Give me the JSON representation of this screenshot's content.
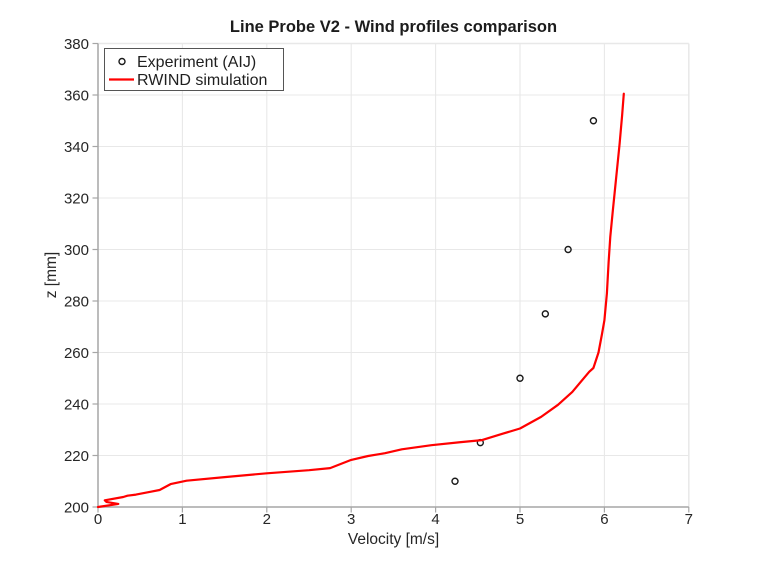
{
  "title": "Line Probe V2 - Wind profiles comparison",
  "axes": {
    "xlabel": "Velocity [m/s]",
    "ylabel": "z [mm]"
  },
  "legend": {
    "position": "top-left",
    "items": [
      {
        "label": "Experiment (AIJ)",
        "marker": "open-circle",
        "color": "#1a1a1a"
      },
      {
        "label": "RWIND simulation",
        "marker": "line",
        "color": "#ff0000"
      }
    ]
  },
  "chart_data": {
    "type": "line",
    "title": "Line Probe V2 - Wind profiles comparison",
    "xlabel": "Velocity [m/s]",
    "ylabel": "z [mm]",
    "xlim": [
      0,
      7
    ],
    "ylim": [
      200,
      380
    ],
    "xticks": [
      0,
      1,
      2,
      3,
      4,
      5,
      6,
      7
    ],
    "yticks": [
      200,
      220,
      240,
      260,
      280,
      300,
      320,
      340,
      360,
      380
    ],
    "grid": true,
    "legend_position": "top-left",
    "series": [
      {
        "name": "Experiment (AIJ)",
        "type": "scatter",
        "marker": "open-circle",
        "color": "#1a1a1a",
        "points": [
          [
            4.23,
            210
          ],
          [
            4.53,
            225
          ],
          [
            5.0,
            250
          ],
          [
            5.3,
            275
          ],
          [
            5.57,
            300
          ],
          [
            5.87,
            350
          ]
        ]
      },
      {
        "name": "RWIND simulation",
        "type": "line",
        "color": "#ff0000",
        "points": [
          [
            0.0,
            200.0
          ],
          [
            0.24,
            201.2
          ],
          [
            0.1,
            202.0
          ],
          [
            0.08,
            202.6
          ],
          [
            0.3,
            203.9
          ],
          [
            0.35,
            204.4
          ],
          [
            0.45,
            204.8
          ],
          [
            0.62,
            205.9
          ],
          [
            0.73,
            206.6
          ],
          [
            0.86,
            208.9
          ],
          [
            1.05,
            210.2
          ],
          [
            1.5,
            211.6
          ],
          [
            2.0,
            213.1
          ],
          [
            2.5,
            214.3
          ],
          [
            2.75,
            215.1
          ],
          [
            3.0,
            218.3
          ],
          [
            3.2,
            219.8
          ],
          [
            3.4,
            220.9
          ],
          [
            3.6,
            222.4
          ],
          [
            3.95,
            224.0
          ],
          [
            4.3,
            225.2
          ],
          [
            4.55,
            226.0
          ],
          [
            4.8,
            228.5
          ],
          [
            5.0,
            230.5
          ],
          [
            5.25,
            235.0
          ],
          [
            5.45,
            239.7
          ],
          [
            5.62,
            244.7
          ],
          [
            5.82,
            252.5
          ],
          [
            5.87,
            254.0
          ],
          [
            5.93,
            260.0
          ],
          [
            5.97,
            267.0
          ],
          [
            6.0,
            272.5
          ],
          [
            6.03,
            283.0
          ],
          [
            6.05,
            295.0
          ],
          [
            6.07,
            305.0
          ],
          [
            6.1,
            315.0
          ],
          [
            6.14,
            328.0
          ],
          [
            6.18,
            341.0
          ],
          [
            6.21,
            352.0
          ],
          [
            6.23,
            360.5
          ]
        ]
      }
    ]
  },
  "style": {
    "line_color": "#ff0000",
    "marker_color": "#1a1a1a",
    "grid_color": "#e8e8e8",
    "box_color": "#e8e8e8",
    "axis_color": "#a6a6a6",
    "tick_label_color": "#262626",
    "legend_border_color": "#555555",
    "text_color": "#1f1f1f",
    "background": "#ffffff"
  }
}
